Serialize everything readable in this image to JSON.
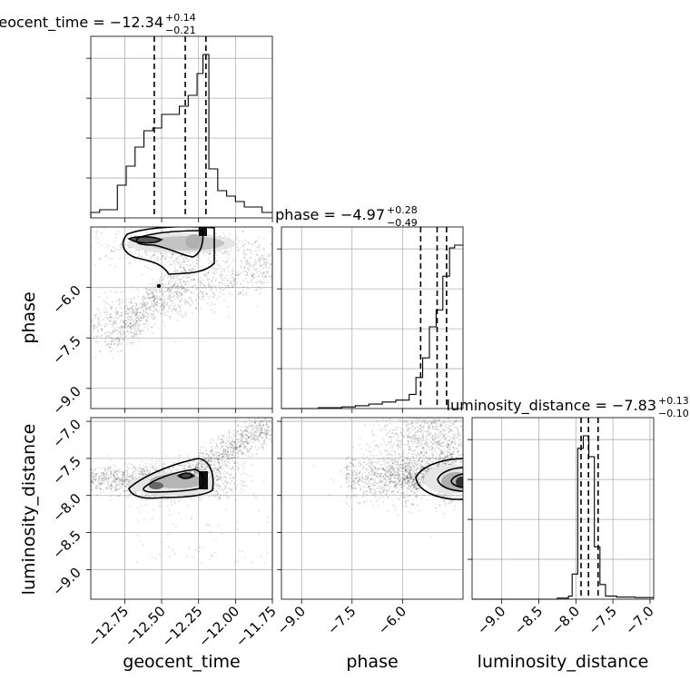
{
  "chart_data": {
    "type": "corner",
    "parameters": [
      "geocent_time",
      "phase",
      "luminosity_distance"
    ],
    "axis_labels": {
      "geocent_time": "geocent_time",
      "phase": "phase",
      "luminosity_distance": "luminosity_distance"
    },
    "ranges": {
      "geocent_time": [
        -12.98,
        -11.75
      ],
      "phase": [
        -9.6,
        -4.2
      ],
      "luminosity_distance": [
        -9.4,
        -6.95
      ]
    },
    "ticks": {
      "geocent_time": [
        "−12.75",
        "−12.50",
        "−12.25",
        "−12.00",
        "−11.75"
      ],
      "phase_x": [
        "−9.0",
        "−7.5",
        "−6.0"
      ],
      "phase_y": [
        "−6.0",
        "−7.5",
        "−9.0"
      ],
      "luminosity_distance_x": [
        "−9.0",
        "−8.5",
        "−8.0",
        "−7.5",
        "−7.0"
      ],
      "luminosity_distance_y": [
        "−7.0",
        "−7.5",
        "−8.0",
        "−8.5",
        "−9.0"
      ]
    },
    "tick_values": {
      "geocent_time": [
        -12.75,
        -12.5,
        -12.25,
        -12.0,
        -11.75
      ],
      "phase_x": [
        -9.0,
        -7.5,
        -6.0
      ],
      "phase_y": [
        -6.0,
        -7.5,
        -9.0
      ],
      "luminosity_distance_x": [
        -9.0,
        -8.5,
        -8.0,
        -7.5,
        -7.0
      ],
      "luminosity_distance_y": [
        -7.0,
        -7.5,
        -8.0,
        -8.5,
        -9.0
      ]
    },
    "summaries": [
      {
        "name": "geocent_time",
        "title": "geocent_time = −12.34",
        "median": -12.34,
        "plus": "+0.14",
        "minus": "−0.21"
      },
      {
        "name": "phase",
        "title": "phase = −4.97",
        "median": -4.97,
        "plus": "+0.28",
        "minus": "−0.49"
      },
      {
        "name": "luminosity_distance",
        "title": "luminosity_distance = −7.83",
        "median": -7.83,
        "plus": "+0.13",
        "minus": "−0.10"
      }
    ],
    "quantiles": {
      "geocent_time": [
        -12.55,
        -12.34,
        -12.2
      ],
      "phase": [
        -5.46,
        -4.97,
        -4.69
      ],
      "luminosity_distance": [
        -7.93,
        -7.83,
        -7.7
      ]
    },
    "histograms": {
      "geocent_time": {
        "edges": [
          -12.98,
          -12.92,
          -12.86,
          -12.8,
          -12.74,
          -12.68,
          -12.62,
          -12.56,
          -12.5,
          -12.44,
          -12.38,
          -12.32,
          -12.26,
          -12.22,
          -12.18,
          -12.12,
          -12.06,
          -12.0,
          -11.94,
          -11.88,
          -11.82,
          -11.75
        ],
        "counts": [
          2,
          3,
          3,
          12,
          19,
          26,
          32,
          33,
          38,
          38,
          41,
          45,
          53,
          60,
          18,
          10,
          8,
          6,
          4,
          4,
          2
        ]
      },
      "phase": {
        "edges": [
          -9.6,
          -8.5,
          -7.8,
          -7.4,
          -7.0,
          -6.6,
          -6.2,
          -5.8,
          -5.6,
          -5.4,
          -5.2,
          -5.0,
          -4.8,
          -4.6,
          -4.45,
          -4.2
        ],
        "counts": [
          0,
          0.3,
          0.6,
          1,
          1.6,
          2.3,
          3,
          5,
          11,
          18,
          29,
          35,
          47,
          57,
          58
        ]
      },
      "luminosity_distance": {
        "edges": [
          -9.4,
          -8.25,
          -8.1,
          -8.05,
          -7.975,
          -7.9,
          -7.825,
          -7.75,
          -7.675,
          -7.6,
          -7.45,
          -7.2,
          -6.95
        ],
        "counts": [
          0,
          0.5,
          1.5,
          12,
          72,
          78,
          68,
          25,
          7,
          1.5,
          1,
          0.8
        ]
      }
    },
    "joint_densities": [
      {
        "x": "geocent_time",
        "y": "phase",
        "peak": [
          -12.24,
          -4.3
        ]
      },
      {
        "x": "geocent_time",
        "y": "luminosity_distance",
        "peak": [
          -12.22,
          -7.85
        ]
      },
      {
        "x": "phase",
        "y": "luminosity_distance",
        "peak": [
          -4.4,
          -7.85
        ]
      }
    ],
    "grid": true
  }
}
